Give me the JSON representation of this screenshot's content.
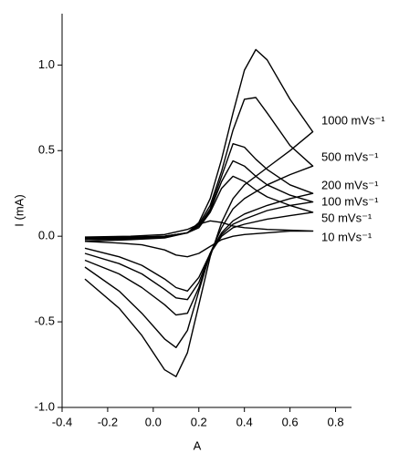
{
  "chart_data": {
    "type": "line",
    "x_label": "A",
    "y_label": "I (mA)",
    "x": [
      -0.3,
      -0.1,
      0.05,
      0.15,
      0.2,
      0.25,
      0.3,
      0.35,
      0.4,
      0.45,
      0.5,
      0.6,
      0.7,
      0.7,
      0.6,
      0.5,
      0.4,
      0.35,
      0.3,
      0.25,
      0.2,
      0.15,
      0.1,
      0.05,
      -0.05,
      -0.15,
      -0.3
    ],
    "series": [
      {
        "name": "1000 mVs⁻¹",
        "color": "#000000",
        "values": [
          -0.03,
          -0.02,
          -0.01,
          0.02,
          0.08,
          0.22,
          0.45,
          0.72,
          0.97,
          1.09,
          1.03,
          0.8,
          0.61,
          0.61,
          0.5,
          0.4,
          0.3,
          0.22,
          0.08,
          -0.12,
          -0.4,
          -0.68,
          -0.82,
          -0.78,
          -0.58,
          -0.42,
          -0.25
        ]
      },
      {
        "name": "500 mVs⁻¹",
        "color": "#000000",
        "values": [
          -0.02,
          -0.015,
          -0.005,
          0.02,
          0.07,
          0.18,
          0.38,
          0.62,
          0.8,
          0.81,
          0.72,
          0.53,
          0.41,
          0.41,
          0.36,
          0.3,
          0.22,
          0.16,
          0.05,
          -0.1,
          -0.32,
          -0.55,
          -0.65,
          -0.6,
          -0.45,
          -0.32,
          -0.18
        ]
      },
      {
        "name": "200 mVs⁻¹",
        "color": "#000000",
        "values": [
          -0.02,
          -0.01,
          0,
          0.02,
          0.06,
          0.16,
          0.35,
          0.54,
          0.52,
          0.45,
          0.39,
          0.3,
          0.25,
          0.25,
          0.22,
          0.18,
          0.13,
          0.09,
          0.02,
          -0.1,
          -0.3,
          -0.45,
          -0.46,
          -0.4,
          -0.3,
          -0.22,
          -0.14
        ]
      },
      {
        "name": "100 mVs⁻¹",
        "color": "#000000",
        "values": [
          -0.015,
          -0.01,
          0,
          0.02,
          0.06,
          0.15,
          0.32,
          0.44,
          0.41,
          0.35,
          0.3,
          0.24,
          0.2,
          0.2,
          0.18,
          0.15,
          0.1,
          0.07,
          0.01,
          -0.1,
          -0.27,
          -0.37,
          -0.36,
          -0.31,
          -0.22,
          -0.16,
          -0.1
        ]
      },
      {
        "name": "50 mVs⁻¹",
        "color": "#000000",
        "values": [
          -0.01,
          -0.005,
          0,
          0.02,
          0.05,
          0.14,
          0.28,
          0.35,
          0.32,
          0.27,
          0.23,
          0.18,
          0.14,
          0.14,
          0.12,
          0.1,
          0.07,
          0.05,
          0,
          -0.1,
          -0.24,
          -0.32,
          -0.3,
          -0.25,
          -0.17,
          -0.12,
          -0.07
        ]
      },
      {
        "name": "10 mVs⁻¹",
        "color": "#000000",
        "values": [
          -0.005,
          0,
          0.01,
          0.04,
          0.07,
          0.09,
          0.08,
          0.06,
          0.05,
          0.045,
          0.04,
          0.035,
          0.03,
          0.03,
          0.03,
          0.02,
          0.01,
          0,
          -0.02,
          -0.06,
          -0.1,
          -0.12,
          -0.11,
          -0.08,
          -0.05,
          -0.04,
          -0.03
        ]
      }
    ],
    "xlim": [
      -0.4,
      0.87
    ],
    "ylim": [
      -1.0,
      1.3
    ],
    "xticks": [
      -0.4,
      -0.2,
      {
        "value": 0,
        "label": "0.0"
      },
      0.2,
      0.4,
      0.6,
      0.8
    ],
    "yticks": [
      {
        "value": -1,
        "label": "-1.0"
      },
      -0.5,
      {
        "value": 0,
        "label": "0.0"
      },
      0.5,
      {
        "value": 1,
        "label": "1.0"
      }
    ]
  }
}
